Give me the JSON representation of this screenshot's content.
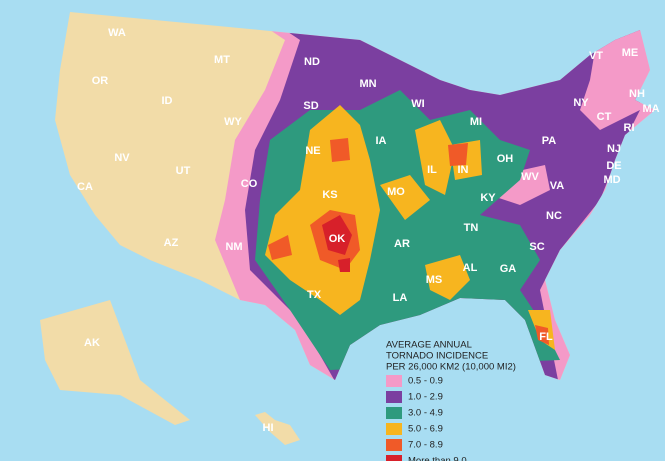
{
  "map": {
    "states": [
      "WA",
      "MT",
      "OR",
      "ID",
      "WY",
      "ND",
      "MN",
      "SD",
      "NE",
      "IA",
      "WI",
      "MI",
      "NV",
      "UT",
      "CO",
      "KS",
      "MO",
      "IL",
      "IN",
      "OH",
      "PA",
      "NY",
      "VT",
      "ME",
      "NH",
      "MA",
      "CT",
      "RI",
      "NJ",
      "DE",
      "MD",
      "WV",
      "VA",
      "KY",
      "CA",
      "AZ",
      "NM",
      "OK",
      "TX",
      "AR",
      "LA",
      "MS",
      "AL",
      "GA",
      "TN",
      "NC",
      "SC",
      "FL",
      "AK",
      "HI"
    ],
    "legend": {
      "title": [
        "AVERAGE ANNUAL",
        "TORNADO INCIDENCE",
        "PER 26,000 KM2 (10,000 MI2)"
      ],
      "items": [
        {
          "label": "0.5 - 0.9",
          "color": "#f49ac8"
        },
        {
          "label": "1.0 - 2.9",
          "color": "#7b3fa0"
        },
        {
          "label": "3.0 - 4.9",
          "color": "#2e9a7e"
        },
        {
          "label": "5.0 - 6.9",
          "color": "#f7b51f"
        },
        {
          "label": "7.0 - 8.9",
          "color": "#f05a28"
        },
        {
          "label": "More than 9.0",
          "color": "#d7202a"
        }
      ]
    }
  }
}
